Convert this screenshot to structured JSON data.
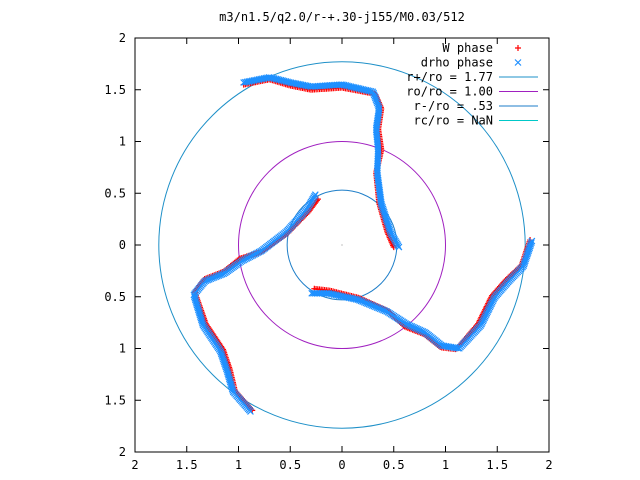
{
  "chart_data": {
    "type": "scatter",
    "title": "m3/n1.5/q2.0/r-+.30-j155/M0.03/512",
    "xlim": [
      -2,
      2
    ],
    "ylim": [
      -2,
      2
    ],
    "x_ticks": [
      "2",
      "1.5",
      "1",
      "0.5",
      "0",
      "0.5",
      "1",
      "1.5",
      "2"
    ],
    "y_ticks": [
      "2",
      "1.5",
      "1",
      "0.5",
      "0",
      "0.5",
      "1",
      "1.5",
      "2"
    ],
    "x_tick_values": [
      -2,
      -1.5,
      -1,
      -0.5,
      0,
      0.5,
      1,
      1.5,
      2
    ],
    "y_tick_values": [
      2,
      1.5,
      1,
      0.5,
      0,
      -0.5,
      -1,
      -1.5,
      -2
    ],
    "grid": false,
    "legend_position": "top-right",
    "legend": [
      {
        "label": "W phase",
        "marker": "+",
        "color": "#ff0000"
      },
      {
        "label": "drho phase",
        "marker": "x",
        "color": "#1e90ff"
      },
      {
        "label": "r+/ro = 1.77",
        "marker": "line",
        "color": "#1e90c8"
      },
      {
        "label": "ro/ro = 1.00",
        "marker": "line",
        "color": "#a020c0"
      },
      {
        "label": "r-/ro = .53",
        "marker": "line",
        "color": "#1e7ec8"
      },
      {
        "label": "rc/ro = NaN",
        "marker": "line",
        "color": "#00c8c8"
      }
    ],
    "circles": [
      {
        "name": "r+/ro = 1.77",
        "r": 1.77,
        "color": "#1e90c8"
      },
      {
        "name": "ro/ro = 1.00",
        "r": 1.0,
        "color": "#a020c0"
      },
      {
        "name": "r-/ro = .53",
        "r": 0.53,
        "color": "#1e7ec8"
      }
    ],
    "series": [
      {
        "name": "W phase",
        "color": "#ff0000",
        "arm_path": [
          [
            0.5,
            -0.02
          ],
          [
            0.44,
            0.12
          ],
          [
            0.36,
            0.4
          ],
          [
            0.33,
            0.7
          ],
          [
            0.38,
            0.92
          ],
          [
            0.35,
            1.12
          ],
          [
            0.38,
            1.32
          ],
          [
            0.32,
            1.46
          ],
          [
            0.0,
            1.52
          ],
          [
            -0.3,
            1.5
          ],
          [
            -0.5,
            1.54
          ],
          [
            -0.7,
            1.6
          ],
          [
            -0.95,
            1.55
          ]
        ]
      },
      {
        "name": "drho phase",
        "color": "#1e90ff",
        "arm_path": [
          [
            0.55,
            -0.02
          ],
          [
            0.47,
            0.12
          ],
          [
            0.38,
            0.4
          ],
          [
            0.34,
            0.7
          ],
          [
            0.35,
            0.92
          ],
          [
            0.33,
            1.12
          ],
          [
            0.36,
            1.32
          ],
          [
            0.3,
            1.48
          ],
          [
            0.0,
            1.55
          ],
          [
            -0.3,
            1.53
          ],
          [
            -0.5,
            1.57
          ],
          [
            -0.7,
            1.62
          ],
          [
            -0.95,
            1.57
          ]
        ]
      }
    ]
  }
}
